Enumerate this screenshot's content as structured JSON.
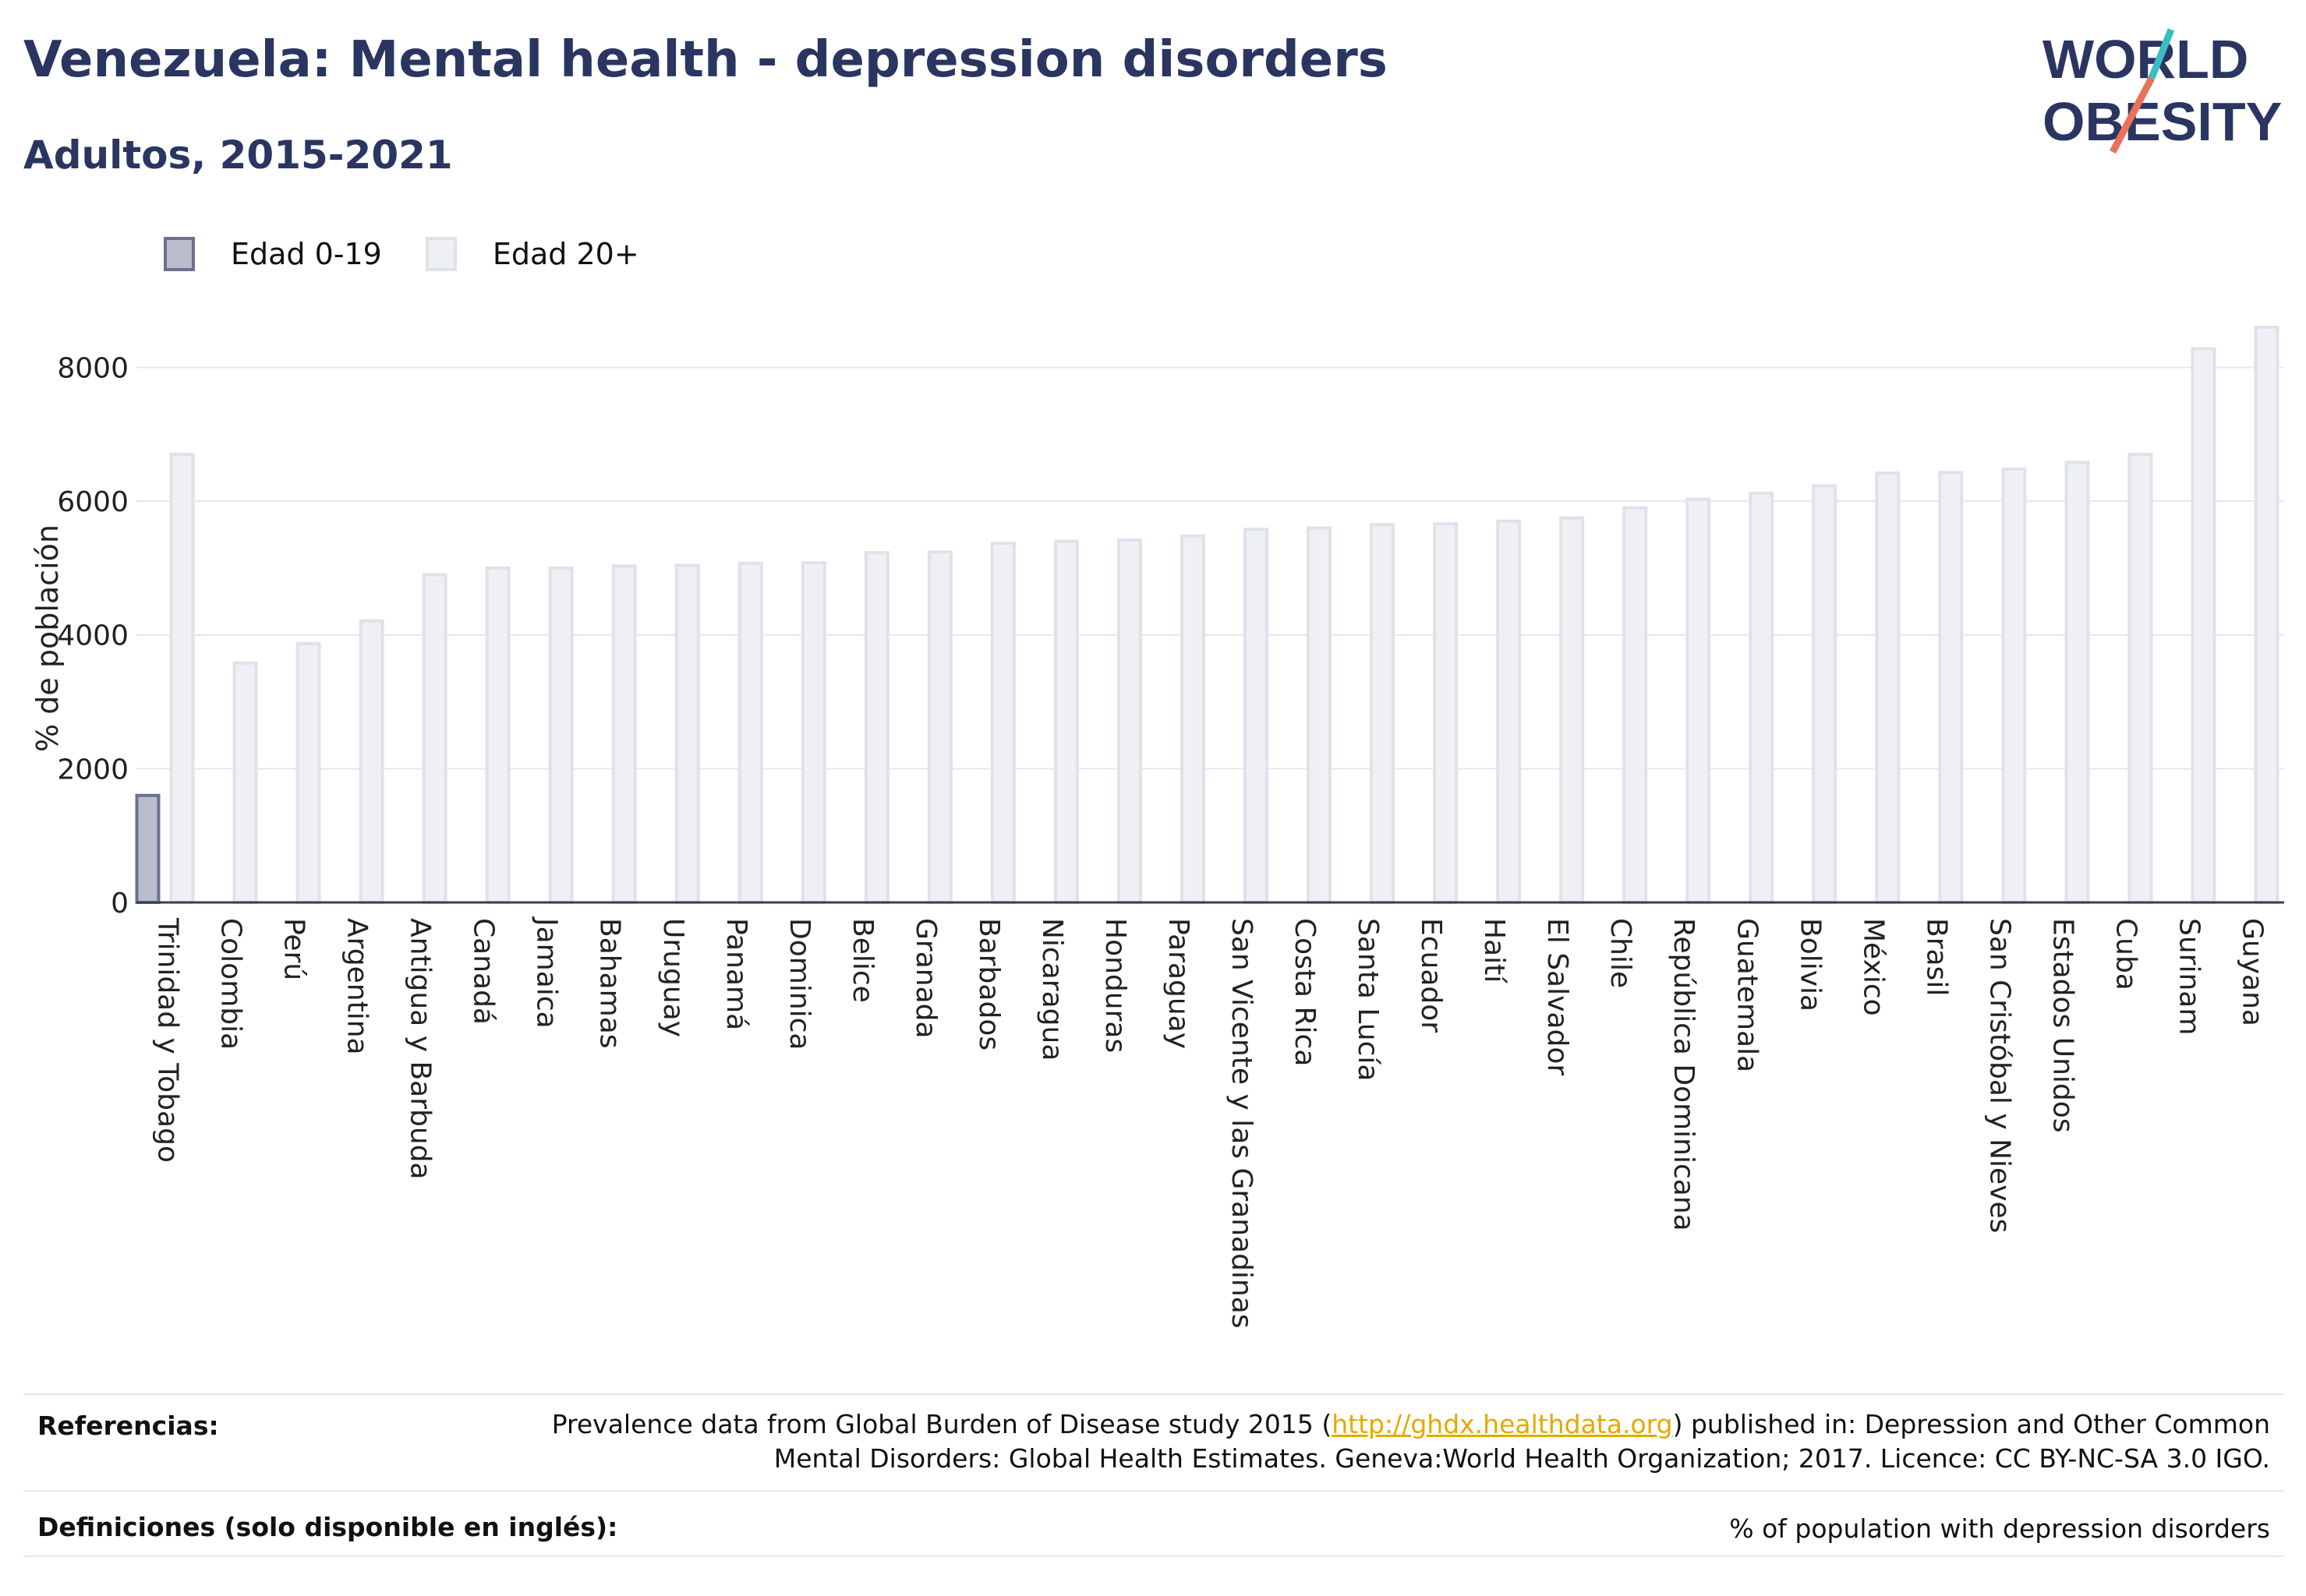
{
  "header": {
    "title": "Venezuela: Mental health - depression disorders",
    "subtitle": "Adultos, 2015-2021"
  },
  "logo": {
    "line1": "WORLD",
    "line2": "OBESITY"
  },
  "colors": {
    "title": "#2a3561",
    "series1_fill": "#b9bccb",
    "series1_stroke": "#6b7093",
    "series2_fill": "#eef0f4",
    "series2_stroke": "#e0e2ea",
    "link": "#e6a800"
  },
  "chart_data": {
    "type": "bar",
    "ylabel": "% de población",
    "ylim": [
      0,
      8600
    ],
    "yticks": [
      0,
      2000,
      4000,
      6000,
      8000
    ],
    "grid": true,
    "legend_position": "top-left",
    "categories": [
      "Trinidad y Tobago",
      "Colombia",
      "Perú",
      "Argentina",
      "Antigua y Barbuda",
      "Canadá",
      "Jamaica",
      "Bahamas",
      "Uruguay",
      "Panamá",
      "Dominica",
      "Belice",
      "Granada",
      "Barbados",
      "Nicaragua",
      "Honduras",
      "Paraguay",
      "San Vicente y las Granadinas",
      "Costa Rica",
      "Santa Lucía",
      "Ecuador",
      "Haití",
      "El Salvador",
      "Chile",
      "República Dominicana",
      "Guatemala",
      "Bolivia",
      "México",
      "Brasil",
      "San Cristóbal y Nieves",
      "Estados Unidos",
      "Cuba",
      "Surinam",
      "Guyana"
    ],
    "series": [
      {
        "name": "Edad 0-19",
        "values": [
          1600,
          null,
          null,
          null,
          null,
          null,
          null,
          null,
          null,
          null,
          null,
          null,
          null,
          null,
          null,
          null,
          null,
          null,
          null,
          null,
          null,
          null,
          null,
          null,
          null,
          null,
          null,
          null,
          null,
          null,
          null,
          null,
          null,
          null
        ]
      },
      {
        "name": "Edad 20+",
        "values": [
          6700,
          3580,
          3870,
          4210,
          4900,
          5000,
          5000,
          5030,
          5040,
          5070,
          5080,
          5230,
          5240,
          5370,
          5400,
          5420,
          5480,
          5580,
          5600,
          5650,
          5660,
          5700,
          5750,
          5900,
          6030,
          6120,
          6230,
          6420,
          6430,
          6480,
          6580,
          6700,
          8280,
          8600
        ]
      }
    ]
  },
  "references": {
    "label": "Referencias:",
    "text_before": "Prevalence data from Global Burden of Disease study 2015 (",
    "link": "http://ghdx.healthdata.org",
    "text_after": ") published in: Depression and Other Common",
    "line2": "Mental Disorders: Global Health Estimates. Geneva:World Health Organization; 2017. Licence: CC BY-NC-SA 3.0 IGO."
  },
  "definitions": {
    "label": "Definiciones (solo disponible en inglés):",
    "text": "% of population with depression disorders"
  }
}
